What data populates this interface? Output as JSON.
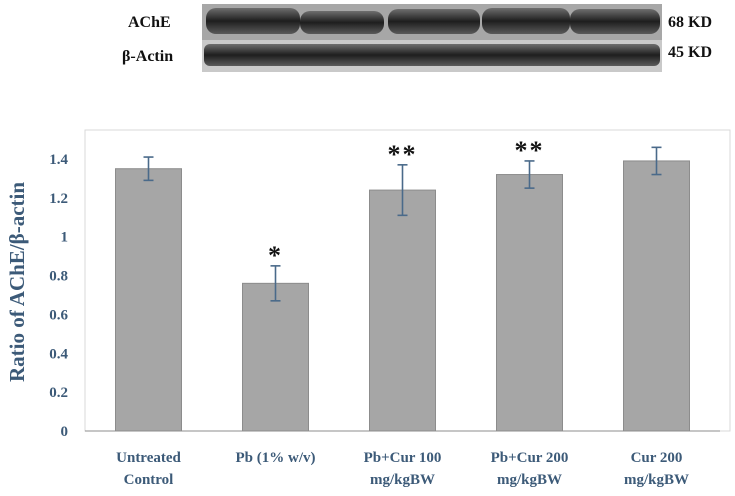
{
  "blot": {
    "rows": [
      {
        "label": "AChE",
        "kd": "68 KD"
      },
      {
        "label": "β-Actin",
        "kd": "45 KD"
      }
    ],
    "lanes": 5
  },
  "chart_data": {
    "type": "bar",
    "categories": [
      [
        "Untreated",
        "Control"
      ],
      [
        "Pb (1% w/v)"
      ],
      [
        "Pb+Cur 100",
        "mg/kgBW"
      ],
      [
        "Pb+Cur 200",
        "mg/kgBW"
      ],
      [
        "Cur 200",
        "mg/kgBW"
      ]
    ],
    "values": [
      1.35,
      0.76,
      1.24,
      1.32,
      1.39
    ],
    "errors": [
      0.06,
      0.09,
      0.13,
      0.07,
      0.07
    ],
    "significance": [
      "",
      "*",
      "**",
      "**",
      ""
    ],
    "ylabel": "Ratio of AChE/β-actin",
    "ylim": [
      0,
      1.4
    ],
    "yticks": [
      "0",
      "0.2",
      "0.4",
      "0.6",
      "0.8",
      "1",
      "1.2",
      "1.4"
    ],
    "grid": false,
    "colors": {
      "bar": "#a6a6a6",
      "bar_edge": "#8c8c8c",
      "error": "#4a6a8a",
      "axis_text": "#3c5a78"
    }
  }
}
